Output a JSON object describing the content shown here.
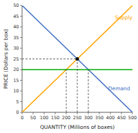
{
  "chart_data": {
    "type": "line",
    "xlabel": "QUANTITY (Millions of boxes)",
    "ylabel": "PRICE (Dollars per box)",
    "xlim": [
      0,
      500
    ],
    "ylim": [
      0,
      50
    ],
    "xticks": [
      0,
      50,
      100,
      150,
      200,
      250,
      300,
      350,
      400,
      450,
      500
    ],
    "yticks": [
      0,
      5,
      10,
      15,
      20,
      25,
      30,
      35,
      40,
      45,
      50
    ],
    "grid": false,
    "series": [
      {
        "type": "line",
        "color": "#FFA500",
        "line_style": "solid",
        "x": [
          0,
          500
        ],
        "values": [
          0,
          50
        ]
      },
      {
        "type": "line",
        "color": "#4472C4",
        "line_style": "solid",
        "x": [
          0,
          500
        ],
        "values": [
          50,
          0
        ]
      },
      {
        "type": "line",
        "color": "#00AA00",
        "line_style": "solid",
        "x": [
          0,
          500
        ],
        "values": [
          20,
          20
        ]
      },
      {
        "type": "line",
        "color": "#555555",
        "line_style": "dashed",
        "x": [
          200,
          200
        ],
        "values": [
          0,
          20
        ]
      },
      {
        "type": "line",
        "color": "#555555",
        "line_style": "dashed",
        "x": [
          300,
          300
        ],
        "values": [
          0,
          20
        ]
      },
      {
        "type": "line",
        "color": "#555555",
        "line_style": "dashed",
        "x": [
          250,
          250
        ],
        "values": [
          0,
          25
        ]
      },
      {
        "type": "line",
        "color": "#555555",
        "line_style": "dashed",
        "x": [
          0,
          250
        ],
        "values": [
          25,
          25
        ]
      },
      {
        "type": "scatter",
        "color": "#000000",
        "marker": "circle",
        "x": [
          250
        ],
        "values": [
          25
        ]
      }
    ],
    "annotations": [
      {
        "text": "Supply",
        "x": 420,
        "y": 43,
        "color": "#FFA500"
      },
      {
        "text": "Demand",
        "x": 390,
        "y": 12,
        "color": "#4472C4"
      }
    ]
  }
}
